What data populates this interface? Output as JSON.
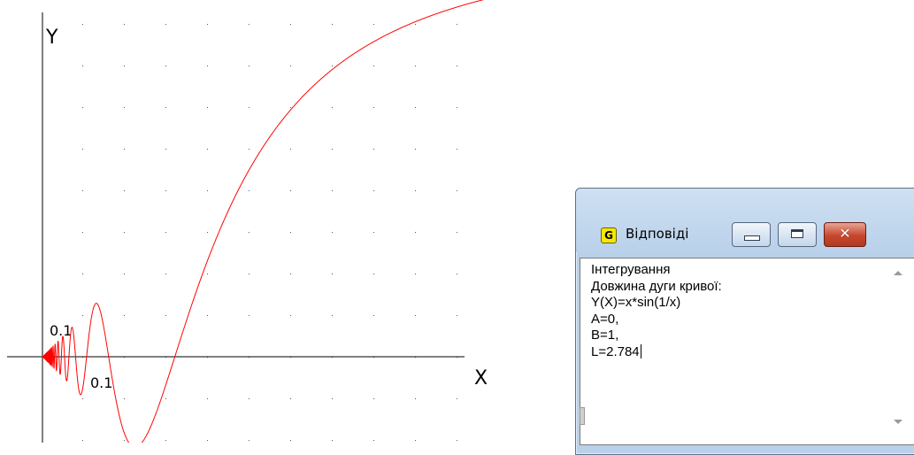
{
  "graph": {
    "function": "x*sin(1/x)",
    "x_axis_label": "X",
    "y_axis_label": "Y",
    "x_tick_label": "0.1",
    "y_tick_label": "0.1",
    "curve_color": "#ff0000",
    "grid": "dotted"
  },
  "window": {
    "title": "Відповіді",
    "icon": "G-app-icon",
    "lines": [
      "Інтегрування",
      "Довжина дуги кривої:",
      "Y(X)=x*sin(1/x)",
      "A=0,",
      "B=1,",
      "L=2.784"
    ]
  },
  "chart_data": {
    "type": "line",
    "series": [
      {
        "name": "",
        "function": "x*sin(1/x)",
        "x_range": [
          0,
          1.07
        ]
      }
    ],
    "xlabel": "X",
    "ylabel": "Y",
    "grid": true
  }
}
